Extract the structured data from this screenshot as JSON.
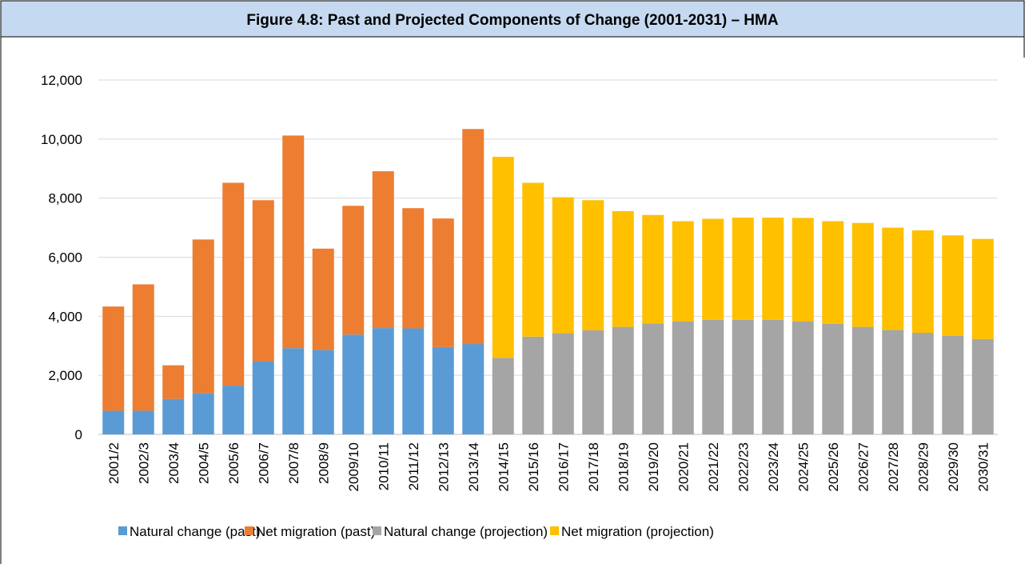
{
  "chart_data": {
    "type": "stacked-bar",
    "title": "Figure 4.8: Past and Projected Components of Change (2001-2031) – HMA",
    "categories": [
      "2001/2",
      "2002/3",
      "2003/4",
      "2004/5",
      "2005/6",
      "2006/7",
      "2007/8",
      "2008/9",
      "2009/10",
      "2010/11",
      "2011/12",
      "2012/13",
      "2013/14",
      "2014/15",
      "2015/16",
      "2016/17",
      "2017/18",
      "2018/19",
      "2019/20",
      "2020/21",
      "2021/22",
      "2022/23",
      "2023/24",
      "2024/25",
      "2025/26",
      "2026/27",
      "2027/28",
      "2028/29",
      "2029/30",
      "2030/31"
    ],
    "series": [
      {
        "name": "Natural change (past)",
        "color": "#5b9bd5",
        "values": [
          800,
          800,
          1200,
          1400,
          1650,
          2480,
          2920,
          2860,
          3380,
          3600,
          3590,
          2960,
          3060,
          null,
          null,
          null,
          null,
          null,
          null,
          null,
          null,
          null,
          null,
          null,
          null,
          null,
          null,
          null,
          null,
          null
        ]
      },
      {
        "name": "Net migration (past)",
        "color": "#ed7d31",
        "values": [
          3530,
          4280,
          1140,
          5200,
          6870,
          5450,
          7200,
          3430,
          4360,
          5310,
          4070,
          4350,
          7280,
          null,
          null,
          null,
          null,
          null,
          null,
          null,
          null,
          null,
          null,
          null,
          null,
          null,
          null,
          null,
          null,
          null
        ]
      },
      {
        "name": "Natural change (projection)",
        "color": "#a5a5a5",
        "values": [
          null,
          null,
          null,
          null,
          null,
          null,
          null,
          null,
          null,
          null,
          null,
          null,
          null,
          2590,
          3310,
          3430,
          3530,
          3640,
          3760,
          3830,
          3880,
          3880,
          3880,
          3830,
          3740,
          3640,
          3540,
          3440,
          3340,
          3230
        ]
      },
      {
        "name": "Net migration (projection)",
        "color": "#ffc000",
        "values": [
          null,
          null,
          null,
          null,
          null,
          null,
          null,
          null,
          null,
          null,
          null,
          null,
          null,
          6810,
          5210,
          4600,
          4400,
          3920,
          3670,
          3390,
          3420,
          3460,
          3460,
          3500,
          3480,
          3520,
          3460,
          3470,
          3400,
          3390
        ]
      }
    ],
    "ylim": [
      0,
      12000
    ],
    "yticks": [
      0,
      {
        "value": 2000,
        "label": "2,000"
      },
      {
        "value": 4000,
        "label": "4,000"
      },
      {
        "value": 6000,
        "label": "6,000"
      },
      {
        "value": 8000,
        "label": "8,000"
      },
      {
        "value": 10000,
        "label": "10,000"
      },
      {
        "value": 12000,
        "label": "12,000"
      }
    ],
    "grid": true
  }
}
